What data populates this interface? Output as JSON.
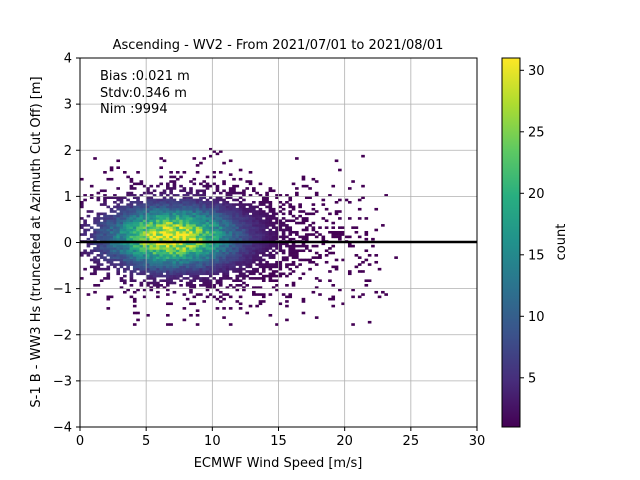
{
  "chart_data": {
    "type": "heatmap",
    "title": "Ascending - WV2 - From 2021/07/01 to 2021/08/01",
    "xlabel": "ECMWF Wind Speed [m/s]",
    "ylabel": "S-1 B - WW3 Hs (truncated at Azimuth Cut Off) [m]",
    "xlim": [
      0,
      30
    ],
    "ylim": [
      -4,
      4
    ],
    "xticks": [
      "0",
      "5",
      "10",
      "15",
      "20",
      "25",
      "30"
    ],
    "yticks": [
      "4",
      "3",
      "2",
      "1",
      "0",
      "−1",
      "−2",
      "−3",
      "−4"
    ],
    "grid": true,
    "annotations": [
      "Bias :0.021 m",
      "Stdv:0.346 m",
      "Nim :9994"
    ],
    "reference_line_y": 0,
    "colorbar": {
      "label": "count",
      "range": [
        1,
        31
      ],
      "ticks": [
        "30",
        "25",
        "20",
        "15",
        "10",
        "5"
      ],
      "colormap": "viridis"
    },
    "density_peak": {
      "x": 6.8,
      "y": 0.1,
      "count": 30
    }
  }
}
